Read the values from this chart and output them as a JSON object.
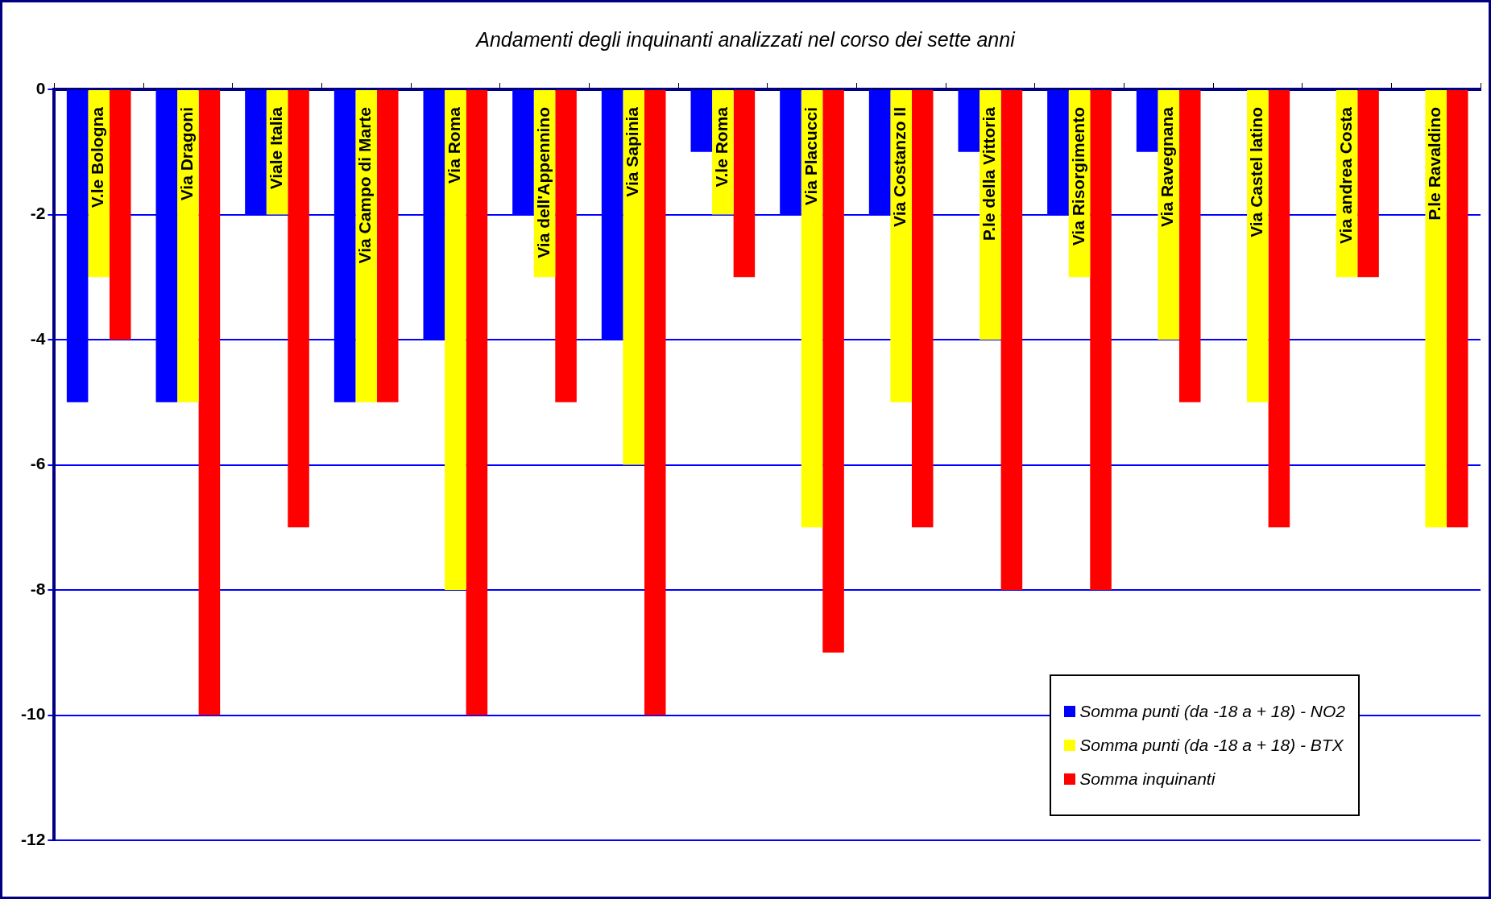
{
  "chart_data": {
    "type": "bar",
    "title": "Andamenti degli inquinanti analizzati nel corso dei sette anni",
    "categories": [
      "V.le Bologna",
      "Via Dragoni",
      "Viale Italia",
      "Via Campo di Marte",
      "Via Roma",
      "Via dell'Appennino",
      "Via Sapinia",
      "V.le Roma",
      "Via Placucci",
      "Via Costanzo II",
      "P.le della Vittoria",
      "Via Risorgimento",
      "Via Ravegnana",
      "Via Castel latino",
      "Via andrea Costa",
      "P.le Ravaldino"
    ],
    "series": [
      {
        "name": "Somma punti (da -18 a + 18) - NO2",
        "color": "#0000ff",
        "values": [
          -5,
          -5,
          -2,
          -5,
          -4,
          -2,
          -4,
          -1,
          -2,
          -2,
          -1,
          -2,
          -1,
          0,
          0,
          0
        ]
      },
      {
        "name": "Somma punti (da -18 a + 18) - BTX",
        "color": "#ffff00",
        "values": [
          -3,
          -5,
          -2,
          -5,
          -8,
          -3,
          -6,
          -2,
          -7,
          -5,
          -4,
          -3,
          -4,
          -5,
          -3,
          -7
        ]
      },
      {
        "name": "Somma inquinanti",
        "color": "#ff0000",
        "values": [
          -4,
          -10,
          -7,
          -5,
          -10,
          -5,
          -10,
          -3,
          -9,
          -7,
          -8,
          -8,
          -5,
          -7,
          -3,
          -7
        ]
      }
    ],
    "ylim": [
      -12,
      0
    ],
    "yticks": [
      0,
      -2,
      -4,
      -6,
      -8,
      -10,
      -12
    ],
    "grid": "y",
    "legend": "bottom right"
  }
}
